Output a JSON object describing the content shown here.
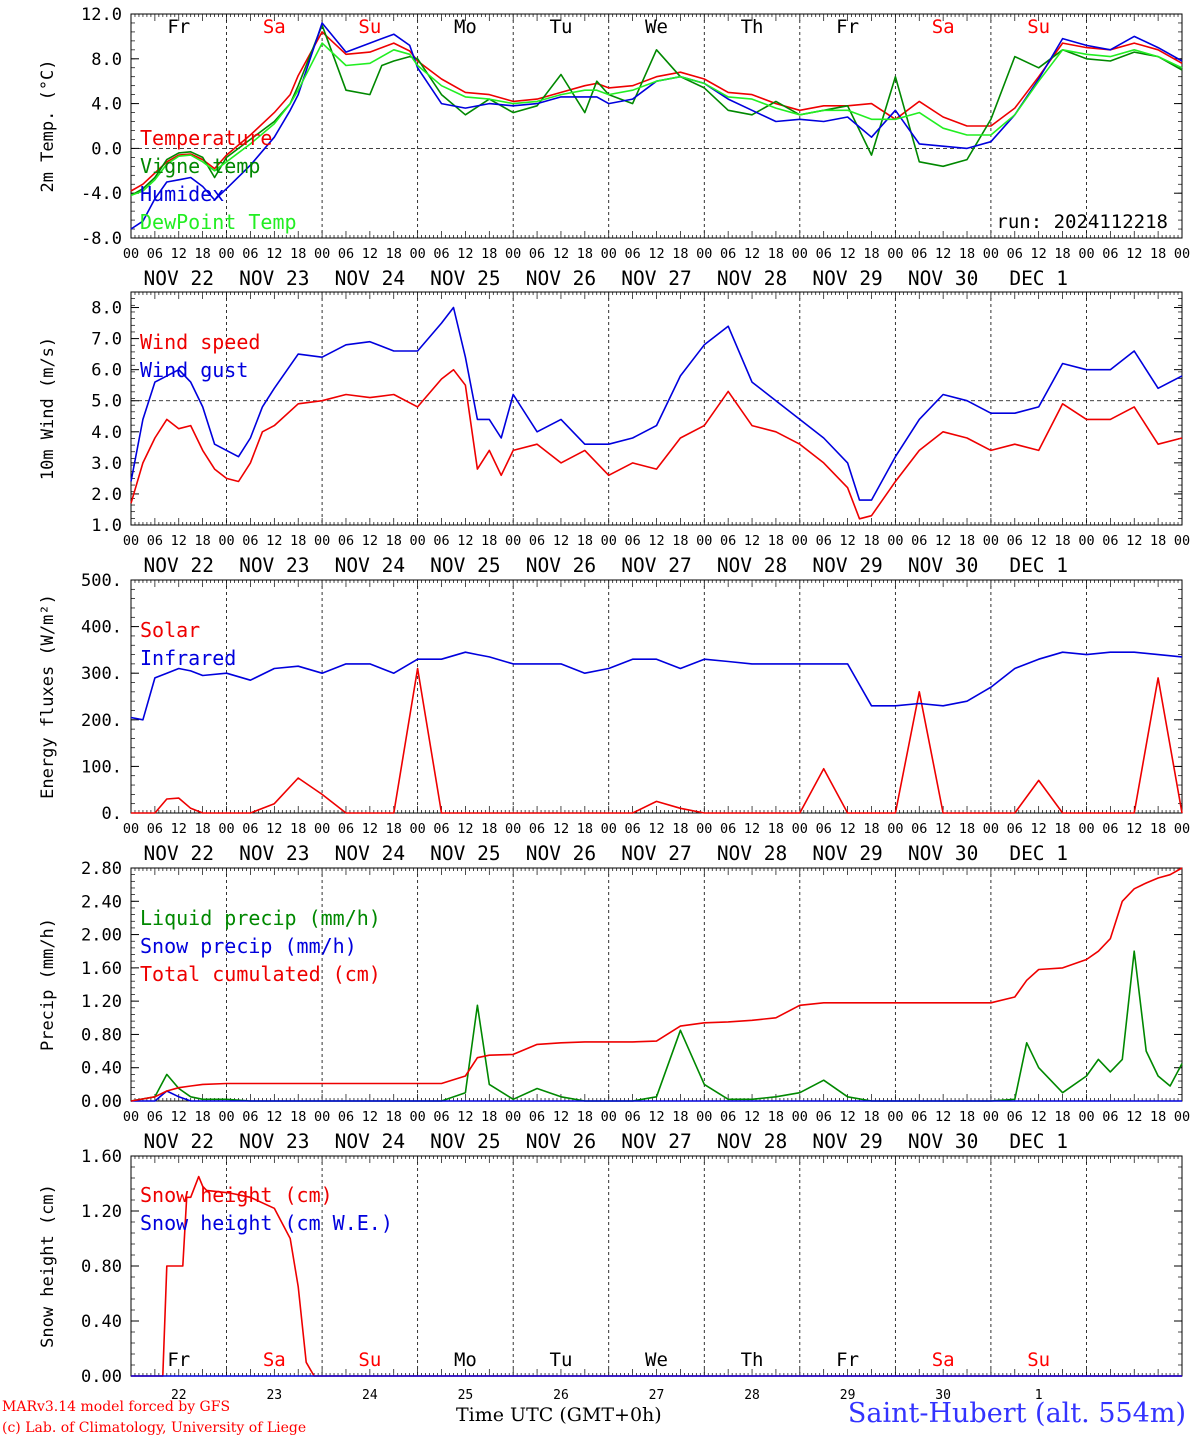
{
  "colors": {
    "red": "#ee0000",
    "blue": "#0000dd",
    "green": "#008800",
    "lightgreen": "#22ee22",
    "weekday": "#000000",
    "weekend": "#ff0000"
  },
  "footer": {
    "credit_line1": "MARv3.14 model forced by GFS",
    "credit_line2": "(c) Lab. of Climatology, University of Liege",
    "time_label": "Time UTC (GMT+0h)",
    "station": "Saint-Hubert (alt. 554m)"
  },
  "chart_data": [
    {
      "type": "line",
      "ylabel": "2m Temp. (°C)",
      "ylim": [
        -8,
        12
      ],
      "yticks": [
        "12.0",
        "8.0",
        "4.0",
        "0.0",
        "-4.0",
        "-8.0"
      ],
      "reference_line": 0,
      "run_label": "run: 2024112218",
      "x_hours": [
        0,
        3,
        6,
        9,
        12,
        15,
        18,
        21,
        24,
        30,
        36,
        40,
        42,
        48,
        54,
        60,
        63,
        66,
        70,
        72,
        78,
        84,
        90,
        96,
        102,
        108,
        114,
        117,
        120,
        126,
        132,
        138,
        144,
        150,
        156,
        162,
        168,
        174,
        180,
        186,
        192,
        198,
        204,
        210,
        216,
        222,
        228,
        234,
        240,
        246,
        252,
        258,
        264
      ],
      "series": [
        {
          "name": "Temperature",
          "color": "red",
          "values": [
            -3.8,
            -3.2,
            -2.2,
            -1.2,
            -0.6,
            -0.5,
            -1.0,
            -1.8,
            -0.6,
            1.2,
            3.2,
            4.8,
            6.5,
            10.4,
            8.4,
            8.6,
            9.0,
            9.4,
            8.7,
            7.8,
            6.2,
            5.0,
            4.8,
            4.2,
            4.4,
            5.0,
            5.6,
            5.8,
            5.4,
            5.6,
            6.4,
            6.8,
            6.2,
            5.0,
            4.8,
            4.0,
            3.4,
            3.8,
            3.8,
            4.0,
            2.6,
            4.2,
            2.8,
            2.0,
            2.0,
            3.6,
            6.4,
            9.4,
            9.0,
            8.8,
            9.4,
            8.8,
            7.6
          ]
        },
        {
          "name": "Vigne temp",
          "color": "green",
          "values": [
            -4.2,
            -3.6,
            -2.6,
            -1.0,
            -0.4,
            -0.3,
            -0.8,
            -2.6,
            -0.8,
            0.8,
            2.4,
            4.0,
            5.6,
            11.0,
            5.2,
            4.8,
            7.4,
            7.8,
            8.2,
            8.0,
            4.8,
            3.0,
            4.4,
            3.2,
            3.8,
            6.6,
            3.2,
            6.0,
            4.8,
            4.0,
            8.8,
            6.4,
            5.4,
            3.4,
            3.0,
            4.2,
            3.0,
            3.4,
            3.8,
            -0.6,
            6.4,
            -1.2,
            -1.6,
            -1.0,
            2.6,
            8.2,
            7.2,
            8.8,
            8.0,
            7.8,
            8.6,
            8.2,
            7.0
          ]
        },
        {
          "name": "Humidex",
          "color": "blue",
          "values": [
            -7.2,
            -6.5,
            -4.5,
            -3.0,
            -2.8,
            -2.6,
            -3.4,
            -4.6,
            -3.6,
            -1.5,
            1.0,
            3.4,
            4.8,
            11.2,
            8.6,
            9.4,
            9.8,
            10.2,
            9.2,
            7.2,
            4.0,
            3.6,
            4.0,
            3.8,
            4.0,
            4.6,
            4.6,
            4.6,
            4.0,
            4.4,
            6.0,
            6.4,
            5.8,
            4.4,
            3.4,
            2.4,
            2.6,
            2.4,
            2.8,
            1.0,
            3.4,
            0.4,
            0.2,
            0.0,
            0.6,
            3.0,
            6.2,
            9.8,
            9.2,
            8.8,
            10.0,
            9.0,
            7.8
          ]
        },
        {
          "name": "DewPoint Temp",
          "color": "lightgreen",
          "values": [
            -4.2,
            -3.8,
            -2.8,
            -1.4,
            -0.7,
            -0.6,
            -1.2,
            -2.0,
            -1.2,
            0.4,
            2.2,
            4.0,
            5.2,
            9.4,
            7.4,
            7.6,
            8.2,
            8.8,
            8.4,
            7.4,
            5.6,
            4.6,
            4.4,
            4.0,
            4.2,
            4.8,
            5.2,
            5.2,
            4.8,
            5.2,
            6.0,
            6.4,
            5.8,
            4.6,
            4.4,
            3.6,
            3.0,
            3.4,
            3.4,
            2.6,
            2.6,
            3.2,
            1.8,
            1.2,
            1.2,
            3.0,
            6.0,
            8.8,
            8.4,
            8.2,
            8.8,
            8.2,
            7.2
          ]
        }
      ]
    },
    {
      "type": "line",
      "ylabel": "10m Wind (m/s)",
      "ylim": [
        1,
        8.5
      ],
      "yticks": [
        "8.0",
        "7.0",
        "6.0",
        "5.0",
        "4.0",
        "3.0",
        "2.0",
        "1.0"
      ],
      "reference_line": 5,
      "x_hours": [
        0,
        3,
        6,
        9,
        12,
        15,
        18,
        21,
        24,
        27,
        30,
        33,
        36,
        42,
        48,
        54,
        60,
        66,
        72,
        78,
        81,
        84,
        87,
        90,
        93,
        96,
        102,
        108,
        114,
        120,
        126,
        132,
        138,
        144,
        150,
        156,
        162,
        168,
        174,
        180,
        183,
        186,
        192,
        198,
        204,
        210,
        216,
        222,
        228,
        234,
        240,
        246,
        252,
        258,
        264
      ],
      "series": [
        {
          "name": "Wind speed",
          "color": "red",
          "values": [
            1.7,
            3.0,
            3.8,
            4.4,
            4.1,
            4.2,
            3.4,
            2.8,
            2.5,
            2.4,
            3.0,
            4.0,
            4.2,
            4.9,
            5.0,
            5.2,
            5.1,
            5.2,
            4.8,
            5.7,
            6.0,
            5.5,
            2.8,
            3.4,
            2.6,
            3.4,
            3.6,
            3.0,
            3.4,
            2.6,
            3.0,
            2.8,
            3.8,
            4.2,
            5.3,
            4.2,
            4.0,
            3.6,
            3.0,
            2.2,
            1.2,
            1.3,
            2.4,
            3.4,
            4.0,
            3.8,
            3.4,
            3.6,
            3.4,
            4.9,
            4.4,
            4.4,
            4.8,
            3.6,
            3.8
          ]
        },
        {
          "name": "Wind gust",
          "color": "blue",
          "values": [
            2.4,
            4.4,
            5.6,
            5.8,
            6.0,
            5.6,
            4.8,
            3.6,
            3.4,
            3.2,
            3.8,
            4.8,
            5.4,
            6.5,
            6.4,
            6.8,
            6.9,
            6.6,
            6.6,
            7.5,
            8.0,
            6.4,
            4.4,
            4.4,
            3.8,
            5.2,
            4.0,
            4.4,
            3.6,
            3.6,
            3.8,
            4.2,
            5.8,
            6.8,
            7.4,
            5.6,
            5.0,
            4.4,
            3.8,
            3.0,
            1.8,
            1.8,
            3.2,
            4.4,
            5.2,
            5.0,
            4.6,
            4.6,
            4.8,
            6.2,
            6.0,
            6.0,
            6.6,
            5.4,
            5.8
          ]
        }
      ]
    },
    {
      "type": "line",
      "ylabel": "Energy fluxes (W/m²)",
      "ylim": [
        0,
        500
      ],
      "yticks": [
        "500.",
        "400.",
        "300.",
        "200.",
        "100.",
        "0."
      ],
      "x_hours": [
        0,
        3,
        6,
        9,
        12,
        15,
        18,
        24,
        30,
        36,
        42,
        48,
        54,
        60,
        66,
        72,
        78,
        84,
        87,
        90,
        96,
        102,
        108,
        114,
        120,
        126,
        132,
        138,
        144,
        150,
        156,
        162,
        168,
        174,
        180,
        186,
        192,
        198,
        204,
        210,
        216,
        222,
        228,
        234,
        240,
        246,
        252,
        258,
        264
      ],
      "series": [
        {
          "name": "Solar",
          "color": "red",
          "values": [
            0,
            0,
            0,
            30,
            32,
            10,
            0,
            0,
            0,
            20,
            75,
            40,
            0,
            0,
            0,
            310,
            0,
            0,
            0,
            0,
            0,
            0,
            0,
            0,
            0,
            0,
            25,
            10,
            0,
            0,
            0,
            0,
            0,
            95,
            0,
            0,
            0,
            260,
            0,
            0,
            0,
            0,
            70,
            0,
            0,
            0,
            0,
            290,
            0
          ]
        },
        {
          "name": "Infrared",
          "color": "blue",
          "values": [
            205,
            200,
            290,
            300,
            310,
            305,
            295,
            300,
            285,
            310,
            315,
            300,
            320,
            320,
            300,
            330,
            330,
            345,
            340,
            335,
            320,
            320,
            320,
            300,
            310,
            330,
            330,
            310,
            330,
            325,
            320,
            320,
            320,
            320,
            320,
            230,
            230,
            235,
            230,
            240,
            270,
            310,
            330,
            345,
            340,
            345,
            345,
            340,
            335
          ]
        }
      ]
    },
    {
      "type": "line",
      "ylabel": "Precip (mm/h)",
      "ylim": [
        0,
        2.8
      ],
      "yticks": [
        "2.80",
        "2.40",
        "2.00",
        "1.60",
        "1.20",
        "0.80",
        "0.40",
        "0.00"
      ],
      "x_hours": [
        0,
        6,
        9,
        12,
        15,
        18,
        24,
        30,
        36,
        42,
        48,
        54,
        60,
        66,
        72,
        78,
        84,
        87,
        90,
        96,
        102,
        108,
        114,
        120,
        126,
        132,
        138,
        144,
        150,
        156,
        162,
        168,
        174,
        180,
        186,
        192,
        198,
        204,
        210,
        216,
        222,
        225,
        228,
        234,
        240,
        243,
        246,
        249,
        252,
        255,
        258,
        261,
        264
      ],
      "series": [
        {
          "name": "Liquid precip (mm/h)",
          "color": "green",
          "values": [
            0,
            0.05,
            0.32,
            0.15,
            0.05,
            0.02,
            0.02,
            0,
            0,
            0,
            0,
            0,
            0,
            0,
            0,
            0,
            0.1,
            1.15,
            0.2,
            0.02,
            0.15,
            0.05,
            0,
            0,
            0,
            0.05,
            0.85,
            0.2,
            0.02,
            0.02,
            0.05,
            0.1,
            0.25,
            0.05,
            0,
            0,
            0,
            0,
            0,
            0,
            0.02,
            0.7,
            0.4,
            0.1,
            0.3,
            0.5,
            0.35,
            0.5,
            1.8,
            0.6,
            0.3,
            0.18,
            0.45
          ]
        },
        {
          "name": "Snow precip (mm/h)",
          "color": "blue",
          "values": [
            0,
            0,
            0.12,
            0.05,
            0,
            0,
            0,
            0,
            0,
            0,
            0,
            0,
            0,
            0,
            0,
            0,
            0,
            0,
            0,
            0,
            0,
            0,
            0,
            0,
            0,
            0,
            0,
            0,
            0,
            0,
            0,
            0,
            0,
            0,
            0,
            0,
            0,
            0,
            0,
            0,
            0,
            0,
            0,
            0,
            0,
            0,
            0,
            0,
            0,
            0,
            0,
            0,
            0
          ]
        },
        {
          "name": "Total cumulated (cm)",
          "color": "red",
          "values": [
            0,
            0.05,
            0.12,
            0.16,
            0.18,
            0.2,
            0.21,
            0.21,
            0.21,
            0.21,
            0.21,
            0.21,
            0.21,
            0.21,
            0.21,
            0.21,
            0.3,
            0.52,
            0.55,
            0.56,
            0.68,
            0.7,
            0.71,
            0.71,
            0.71,
            0.72,
            0.9,
            0.94,
            0.95,
            0.97,
            1.0,
            1.15,
            1.18,
            1.18,
            1.18,
            1.18,
            1.18,
            1.18,
            1.18,
            1.18,
            1.25,
            1.45,
            1.58,
            1.6,
            1.7,
            1.8,
            1.95,
            2.4,
            2.55,
            2.62,
            2.68,
            2.72,
            2.8
          ]
        }
      ]
    },
    {
      "type": "line",
      "ylabel": "Snow height (cm)",
      "ylim": [
        0,
        1.6
      ],
      "yticks": [
        "1.60",
        "1.20",
        "0.80",
        "0.40",
        "0.00"
      ],
      "x_hours": [
        0,
        8,
        9,
        13,
        14,
        15,
        17,
        18,
        19,
        25,
        30,
        36,
        40,
        42,
        44,
        46,
        47,
        48,
        264
      ],
      "series": [
        {
          "name": "Snow height (cm)",
          "color": "red",
          "values": [
            0,
            0,
            0.8,
            0.8,
            1.3,
            1.3,
            1.45,
            1.38,
            1.35,
            1.33,
            1.3,
            1.22,
            1.0,
            0.65,
            0.1,
            0,
            0,
            0,
            0
          ]
        },
        {
          "name": "Snow height (cm W.E.)",
          "color": "blue",
          "values": [
            0,
            0,
            0,
            0,
            0,
            0,
            0,
            0,
            0,
            0,
            0,
            0,
            0,
            0,
            0,
            0,
            0,
            0,
            0
          ]
        }
      ]
    }
  ],
  "axes": {
    "hour_ticks": [
      "00",
      "06",
      "12",
      "18"
    ],
    "date_labels": [
      "NOV 22",
      "NOV 23",
      "NOV 24",
      "NOV 25",
      "NOV 26",
      "NOV 27",
      "NOV 28",
      "NOV 29",
      "NOV 30",
      "DEC  1"
    ],
    "bottom_day_numbers": [
      "22",
      "23",
      "24",
      "25",
      "26",
      "27",
      "28",
      "29",
      "30",
      "1"
    ],
    "weekdays": [
      {
        "label": "Fr",
        "weekend": false
      },
      {
        "label": "Sa",
        "weekend": true
      },
      {
        "label": "Su",
        "weekend": true
      },
      {
        "label": "Mo",
        "weekend": false
      },
      {
        "label": "Tu",
        "weekend": false
      },
      {
        "label": "We",
        "weekend": false
      },
      {
        "label": "Th",
        "weekend": false
      },
      {
        "label": "Fr",
        "weekend": false
      },
      {
        "label": "Sa",
        "weekend": true
      },
      {
        "label": "Su",
        "weekend": true
      }
    ]
  }
}
